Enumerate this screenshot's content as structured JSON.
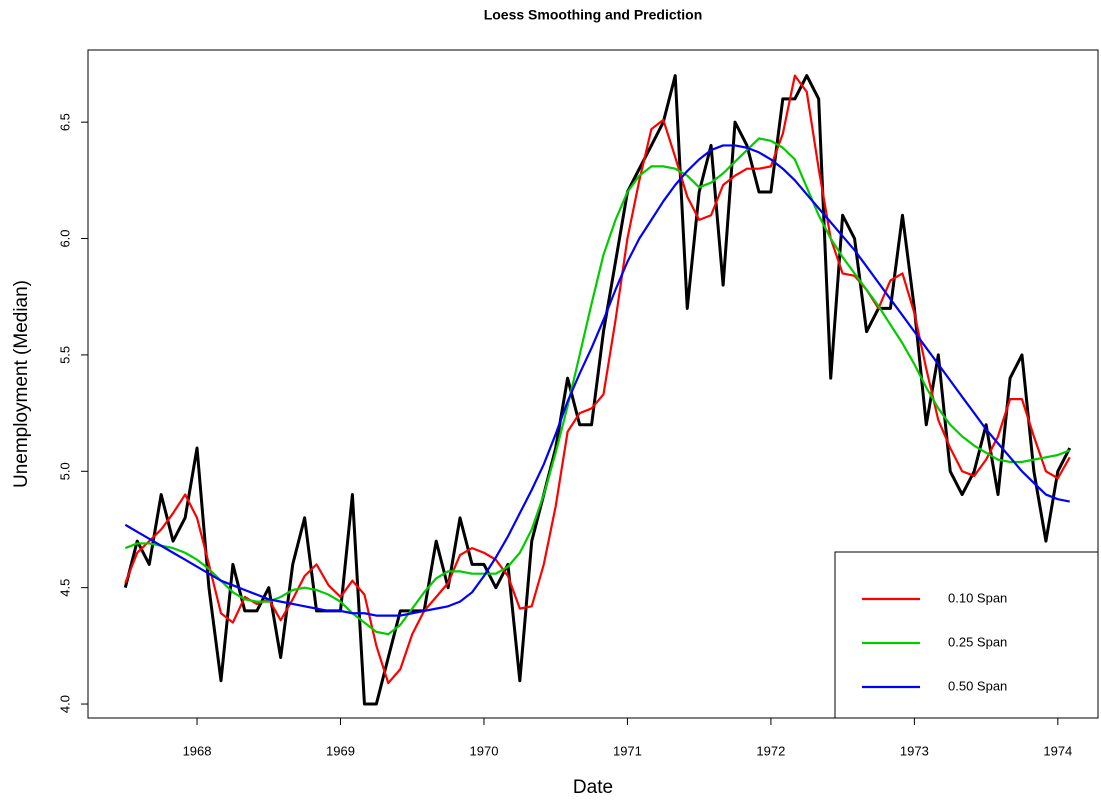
{
  "chart_data": {
    "type": "line",
    "title": "Loess Smoothing and Prediction",
    "x_label": "Date",
    "y_label": "Unemployment (Median)",
    "x": [
      1967.5,
      1967.583,
      1967.667,
      1967.75,
      1967.833,
      1967.917,
      1968,
      1968.083,
      1968.167,
      1968.25,
      1968.333,
      1968.417,
      1968.5,
      1968.583,
      1968.667,
      1968.75,
      1968.833,
      1968.917,
      1969,
      1969.083,
      1969.167,
      1969.25,
      1969.333,
      1969.417,
      1969.5,
      1969.583,
      1969.667,
      1969.75,
      1969.833,
      1969.917,
      1970,
      1970.083,
      1970.167,
      1970.25,
      1970.333,
      1970.417,
      1970.5,
      1970.583,
      1970.667,
      1970.75,
      1970.833,
      1970.917,
      1971,
      1971.083,
      1971.167,
      1971.25,
      1971.333,
      1971.417,
      1971.5,
      1971.583,
      1971.667,
      1971.75,
      1971.833,
      1971.917,
      1972,
      1972.083,
      1972.167,
      1972.25,
      1972.333,
      1972.417,
      1972.5,
      1972.583,
      1972.667,
      1972.75,
      1972.833,
      1972.917,
      1973,
      1973.083,
      1973.167,
      1973.25,
      1973.333,
      1973.417,
      1973.5,
      1973.583,
      1973.667,
      1973.75,
      1973.833,
      1973.917,
      1974,
      1974.083
    ],
    "series": [
      {
        "color": "#000000",
        "values": [
          4.5,
          4.7,
          4.6,
          4.9,
          4.7,
          4.8,
          5.1,
          4.5,
          4.1,
          4.6,
          4.4,
          4.4,
          4.5,
          4.2,
          4.6,
          4.8,
          4.4,
          4.4,
          4.4,
          4.9,
          4.0,
          4.0,
          4.2,
          4.4,
          4.4,
          4.4,
          4.7,
          4.5,
          4.8,
          4.6,
          4.6,
          4.5,
          4.6,
          4.1,
          4.7,
          4.9,
          5.1,
          5.4,
          5.2,
          5.2,
          5.6,
          5.9,
          6.2,
          6.3,
          6.4,
          6.5,
          6.7,
          5.7,
          6.2,
          6.4,
          5.8,
          6.5,
          6.4,
          6.2,
          6.2,
          6.6,
          6.6,
          6.7,
          6.6,
          5.4,
          6.1,
          6.0,
          5.6,
          5.7,
          5.7,
          6.1,
          5.7,
          5.2,
          5.5,
          5.0,
          4.9,
          5.0,
          5.2,
          4.9,
          5.4,
          5.5,
          5.0,
          4.7,
          5.0,
          5.1
        ]
      },
      {
        "name": "0.10 Span",
        "color": "#ff0000",
        "values": [
          4.52,
          4.65,
          4.7,
          4.75,
          4.82,
          4.9,
          4.8,
          4.6,
          4.39,
          4.35,
          4.46,
          4.43,
          4.45,
          4.36,
          4.45,
          4.55,
          4.6,
          4.51,
          4.46,
          4.53,
          4.47,
          4.25,
          4.09,
          4.15,
          4.3,
          4.4,
          4.46,
          4.52,
          4.64,
          4.67,
          4.65,
          4.62,
          4.55,
          4.41,
          4.42,
          4.6,
          4.85,
          5.17,
          5.25,
          5.27,
          5.33,
          5.65,
          6.0,
          6.25,
          6.47,
          6.51,
          6.35,
          6.18,
          6.08,
          6.1,
          6.23,
          6.27,
          6.3,
          6.3,
          6.31,
          6.45,
          6.7,
          6.63,
          6.3,
          6.0,
          5.85,
          5.84,
          5.78,
          5.7,
          5.82,
          5.85,
          5.68,
          5.44,
          5.22,
          5.1,
          5.0,
          4.98,
          5.05,
          5.15,
          5.31,
          5.31,
          5.15,
          5.0,
          4.97,
          5.06
        ]
      },
      {
        "name": "0.25 Span",
        "color": "#00cc00",
        "values": [
          4.67,
          4.69,
          4.69,
          4.68,
          4.67,
          4.65,
          4.62,
          4.58,
          4.53,
          4.48,
          4.45,
          4.44,
          4.44,
          4.46,
          4.49,
          4.5,
          4.49,
          4.47,
          4.44,
          4.39,
          4.35,
          4.31,
          4.3,
          4.34,
          4.41,
          4.48,
          4.54,
          4.57,
          4.57,
          4.56,
          4.56,
          4.56,
          4.59,
          4.65,
          4.75,
          4.9,
          5.08,
          5.28,
          5.5,
          5.72,
          5.93,
          6.08,
          6.2,
          6.27,
          6.31,
          6.31,
          6.3,
          6.27,
          6.22,
          6.24,
          6.28,
          6.33,
          6.38,
          6.43,
          6.42,
          6.39,
          6.34,
          6.22,
          6.1,
          6.0,
          5.92,
          5.85,
          5.78,
          5.71,
          5.63,
          5.55,
          5.46,
          5.36,
          5.27,
          5.2,
          5.15,
          5.11,
          5.08,
          5.05,
          5.04,
          5.04,
          5.05,
          5.06,
          5.07,
          5.09
        ]
      },
      {
        "name": "0.50 Span",
        "color": "#0000ff",
        "values": [
          4.77,
          4.74,
          4.71,
          4.68,
          4.65,
          4.62,
          4.59,
          4.56,
          4.53,
          4.51,
          4.49,
          4.47,
          4.45,
          4.44,
          4.43,
          4.42,
          4.41,
          4.4,
          4.4,
          4.39,
          4.39,
          4.38,
          4.38,
          4.38,
          4.39,
          4.4,
          4.41,
          4.42,
          4.44,
          4.48,
          4.55,
          4.63,
          4.72,
          4.82,
          4.92,
          5.03,
          5.16,
          5.3,
          5.42,
          5.53,
          5.65,
          5.78,
          5.9,
          6.0,
          6.08,
          6.16,
          6.23,
          6.29,
          6.34,
          6.38,
          6.4,
          6.4,
          6.39,
          6.37,
          6.34,
          6.3,
          6.25,
          6.19,
          6.13,
          6.07,
          6.01,
          5.95,
          5.88,
          5.81,
          5.74,
          5.67,
          5.6,
          5.53,
          5.46,
          5.39,
          5.32,
          5.25,
          5.18,
          5.12,
          5.06,
          5.0,
          4.95,
          4.9,
          4.88,
          4.87
        ]
      }
    ],
    "xlim": [
      1967.24,
      1974.28
    ],
    "ylim": [
      3.94,
      6.81
    ],
    "xticks": [
      1968,
      1969,
      1970,
      1971,
      1972,
      1973,
      1974
    ],
    "yticks": [
      {
        "value": 4,
        "label": "4.0"
      },
      4.5,
      {
        "value": 5,
        "label": "5.0"
      },
      5.5,
      {
        "value": 6,
        "label": "6.0"
      },
      6.5
    ],
    "legend": "bottomright"
  }
}
